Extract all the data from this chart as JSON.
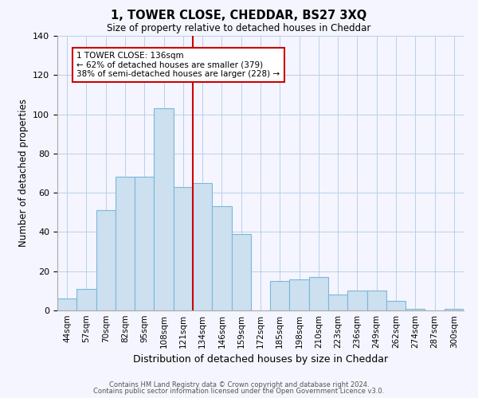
{
  "title": "1, TOWER CLOSE, CHEDDAR, BS27 3XQ",
  "subtitle": "Size of property relative to detached houses in Cheddar",
  "xlabel": "Distribution of detached houses by size in Cheddar",
  "ylabel": "Number of detached properties",
  "bar_labels": [
    "44sqm",
    "57sqm",
    "70sqm",
    "82sqm",
    "95sqm",
    "108sqm",
    "121sqm",
    "134sqm",
    "146sqm",
    "159sqm",
    "172sqm",
    "185sqm",
    "198sqm",
    "210sqm",
    "223sqm",
    "236sqm",
    "249sqm",
    "262sqm",
    "274sqm",
    "287sqm",
    "300sqm"
  ],
  "bar_heights": [
    6,
    11,
    51,
    68,
    68,
    103,
    63,
    65,
    53,
    39,
    0,
    15,
    16,
    17,
    8,
    10,
    10,
    5,
    1,
    0,
    1
  ],
  "bar_color": "#cce0f0",
  "bar_edge_color": "#7ab8d9",
  "vline_color": "#cc0000",
  "annotation_text": "1 TOWER CLOSE: 136sqm\n← 62% of detached houses are smaller (379)\n38% of semi-detached houses are larger (228) →",
  "annotation_box_edge": "#cc0000",
  "ylim": [
    0,
    140
  ],
  "yticks": [
    0,
    20,
    40,
    60,
    80,
    100,
    120,
    140
  ],
  "footer_line1": "Contains HM Land Registry data © Crown copyright and database right 2024.",
  "footer_line2": "Contains public sector information licensed under the Open Government Licence v3.0.",
  "background_color": "#f5f5ff"
}
